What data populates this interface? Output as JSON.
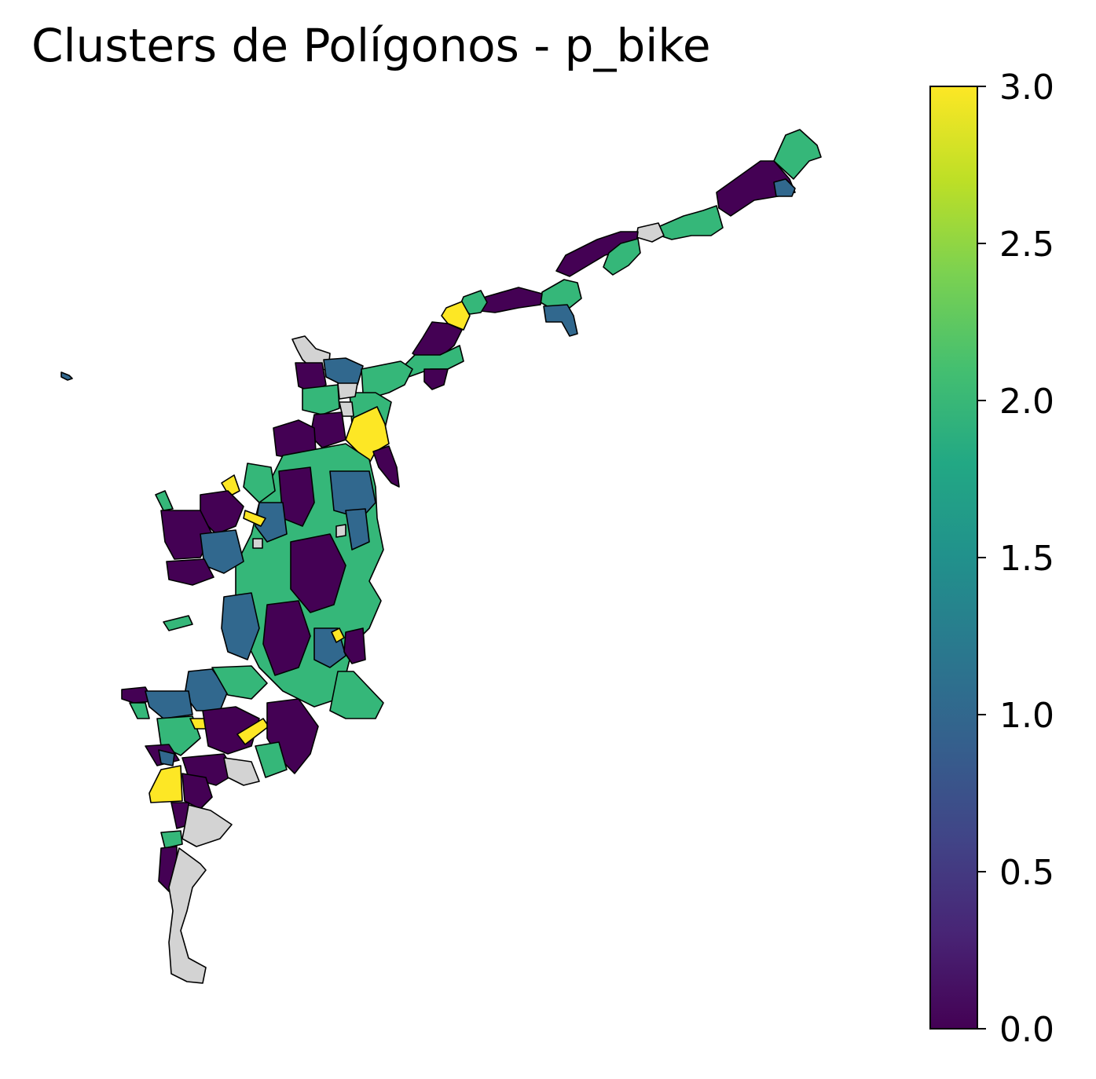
{
  "title": "Clusters de Polígonos - p_bike",
  "legend": {
    "type": "colorbar",
    "colormap": "viridis",
    "range": [
      0,
      3
    ],
    "ticks": [
      {
        "value": 0.0,
        "label": "0.0"
      },
      {
        "value": 0.5,
        "label": "0.5"
      },
      {
        "value": 1.0,
        "label": "1.0"
      },
      {
        "value": 1.5,
        "label": "1.5"
      },
      {
        "value": 2.0,
        "label": "2.0"
      },
      {
        "value": 2.5,
        "label": "2.5"
      },
      {
        "value": 3.0,
        "label": "3.0"
      }
    ]
  },
  "colors": {
    "cluster_0": "#440154",
    "cluster_1": "#31688e",
    "cluster_2": "#35b779",
    "cluster_3": "#fde725",
    "no_data": "#d3d3d3",
    "outline": "#000000"
  }
}
